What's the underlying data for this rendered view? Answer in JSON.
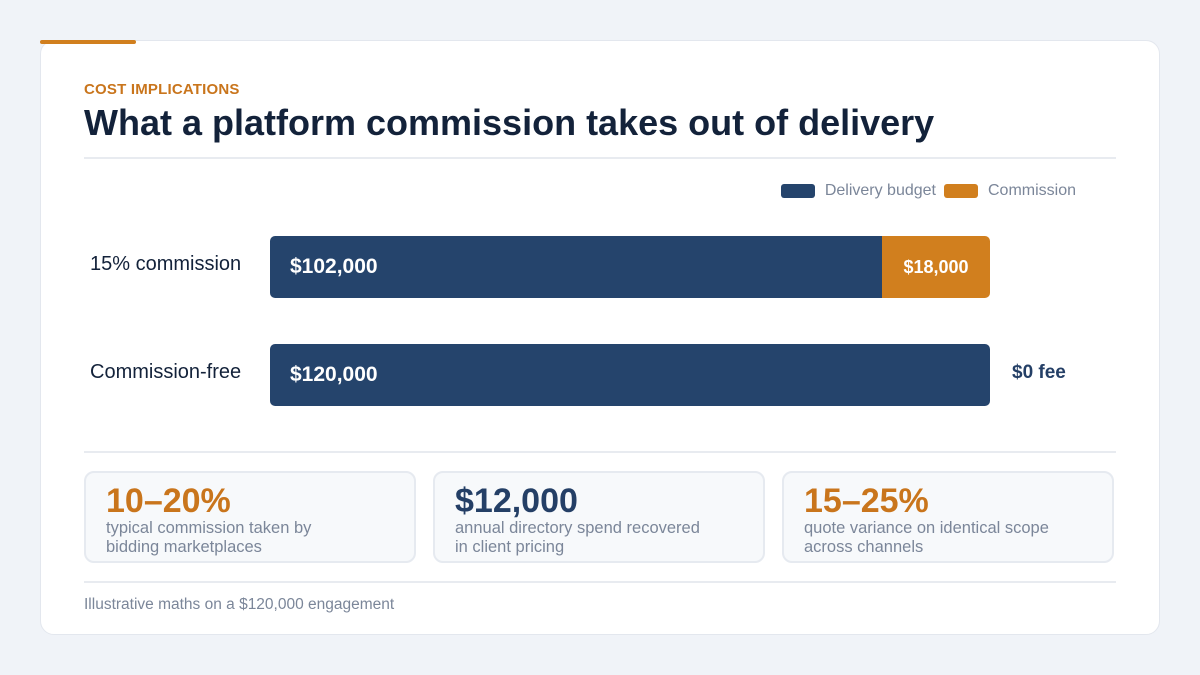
{
  "eyebrow": "COST IMPLICATIONS",
  "title": "What a platform commission takes out of delivery",
  "colors": {
    "delivery": "#25446c",
    "commission": "#d17f1e",
    "accent": "#d17f1e",
    "navy_text": "#243f66"
  },
  "chart_data": {
    "type": "bar",
    "orientation": "horizontal",
    "stacked": true,
    "categories": [
      "15% commission",
      "Commission-free"
    ],
    "series": [
      {
        "name": "Delivery budget",
        "values": [
          102000,
          120000
        ],
        "labels": [
          "$102,000",
          "$120,000"
        ],
        "color": "#25446c"
      },
      {
        "name": "Commission",
        "values": [
          18000,
          0
        ],
        "labels": [
          "$18,000",
          ""
        ],
        "color": "#d17f1e"
      }
    ],
    "xlim": [
      0,
      120000
    ],
    "legend_position": "top-right",
    "annotations": [
      "$0 fee"
    ]
  },
  "stats": [
    {
      "value": "10–20%",
      "desc": "typical commission taken by bidding marketplaces",
      "color": "#c9751c"
    },
    {
      "value": "$12,000",
      "desc": "annual directory spend recovered in client pricing",
      "color": "#243f66"
    },
    {
      "value": "15–25%",
      "desc": "quote variance on identical scope across channels",
      "color": "#c9751c"
    }
  ],
  "footnote": "Illustrative maths on a $120,000 engagement"
}
